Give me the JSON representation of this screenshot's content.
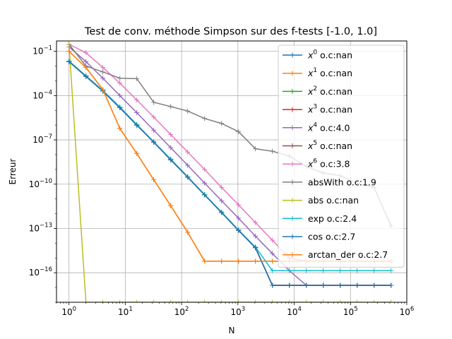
{
  "chart_data": {
    "type": "line",
    "title": "Test de conv. méthode Simpson sur des f-tests [-1.0, 1.0]",
    "xlabel": "N",
    "ylabel": "Erreur",
    "xscale": "log",
    "yscale": "log",
    "xlim": [
      0.6,
      1000000
    ],
    "ylim": [
      1e-18,
      0.5
    ],
    "x_ticks": [
      {
        "value": 1,
        "mantissa": "10",
        "exp": "0"
      },
      {
        "value": 10,
        "mantissa": "10",
        "exp": "1"
      },
      {
        "value": 100,
        "mantissa": "10",
        "exp": "2"
      },
      {
        "value": 1000,
        "mantissa": "10",
        "exp": "3"
      },
      {
        "value": 10000,
        "mantissa": "10",
        "exp": "4"
      },
      {
        "value": 100000,
        "mantissa": "10",
        "exp": "5"
      },
      {
        "value": 1000000,
        "mantissa": "10",
        "exp": "6"
      }
    ],
    "y_ticks": [
      {
        "value": 1e-16,
        "mantissa": "10",
        "exp": "−16"
      },
      {
        "value": 1e-13,
        "mantissa": "10",
        "exp": "−13"
      },
      {
        "value": 1e-10,
        "mantissa": "10",
        "exp": "−10"
      },
      {
        "value": 1e-07,
        "mantissa": "10",
        "exp": "−7"
      },
      {
        "value": 0.0001,
        "mantissa": "10",
        "exp": "−4"
      },
      {
        "value": 0.1,
        "mantissa": "10",
        "exp": "−1"
      }
    ],
    "grid": true,
    "legend_position": "top-right",
    "x": [
      1,
      2,
      4,
      8,
      16,
      32,
      64,
      128,
      256,
      512,
      1024,
      2048,
      4096,
      8192,
      16384,
      32768,
      65536,
      131072,
      262144,
      524288
    ],
    "series": [
      {
        "name": "x^0 o.c:nan",
        "color": "#1f77b4",
        "values": [
          0.02,
          0.002,
          0.0002,
          1.5e-05,
          1e-06,
          7e-08,
          4.5e-09,
          3e-10,
          1.9e-11,
          1.2e-12,
          7.5e-14,
          5e-15,
          1.4e-17,
          1.4e-17,
          1.4e-17,
          1.4e-17,
          1.4e-17,
          1.4e-17,
          1.4e-17,
          1.4e-17
        ]
      },
      {
        "name": "x^1 o.c:nan",
        "color": "#ff7f0e",
        "values": [
          0.1,
          0.008,
          0.00025,
          6e-07,
          1.2e-08,
          2e-10,
          3.5e-12,
          5.5e-14,
          6e-16,
          6e-16,
          6e-16,
          6e-16,
          6e-16,
          6e-16,
          6e-16,
          6e-16,
          6e-16,
          6e-16,
          6e-16,
          6e-16
        ]
      },
      {
        "name": "x^2 o.c:nan",
        "color": "#2ca02c",
        "values": [
          0.02,
          0.002,
          0.0002,
          1.5e-05,
          1e-06,
          7e-08,
          4.5e-09,
          3e-10,
          1.9e-11,
          1.2e-12,
          7.5e-14,
          5e-15,
          1.4e-17,
          1.4e-17,
          1.4e-17,
          1.4e-17,
          1.4e-17,
          1.4e-17,
          1.4e-17,
          1.4e-17
        ]
      },
      {
        "name": "x^3 o.c:nan",
        "color": "#d62728",
        "values": [
          0.02,
          0.002,
          0.0002,
          1.5e-05,
          1e-06,
          7e-08,
          4.5e-09,
          3e-10,
          1.9e-11,
          1.2e-12,
          7.5e-14,
          5e-15,
          1.4e-17,
          1.4e-17,
          1.4e-17,
          1.4e-17,
          1.4e-17,
          1.4e-17,
          1.4e-17,
          1.4e-17
        ]
      },
      {
        "name": "x^4 o.c:4.0",
        "color": "#9467bd",
        "values": [
          0.2,
          0.02,
          0.0015,
          0.0001,
          7e-06,
          4.5e-07,
          3e-08,
          1.9e-09,
          1.2e-10,
          7.5e-12,
          5e-13,
          3e-14,
          2e-15,
          1.4e-16,
          1.4e-17,
          1.4e-17,
          1.4e-17,
          1.4e-17,
          1.4e-17,
          1.4e-17
        ]
      },
      {
        "name": "x^5 o.c:nan",
        "color": "#8c564b",
        "values": [
          0.02,
          0.002,
          0.0002,
          1.5e-05,
          1e-06,
          7e-08,
          4.5e-09,
          3e-10,
          1.9e-11,
          1.2e-12,
          7.5e-14,
          5e-15,
          1.4e-17,
          1.4e-17,
          1.4e-17,
          1.4e-17,
          1.4e-17,
          1.4e-17,
          1.4e-17,
          1.4e-17
        ]
      },
      {
        "name": "x^6 o.c:3.8",
        "color": "#e377c2",
        "values": [
          0.3,
          0.08,
          0.008,
          0.0007,
          5e-05,
          3.5e-06,
          2.3e-07,
          1.5e-08,
          1e-09,
          6e-11,
          4e-12,
          2.5e-13,
          1.6e-14,
          1e-15,
          6e-16,
          6e-16,
          6e-16,
          6e-16,
          6e-16,
          6e-16
        ]
      },
      {
        "name": "absWith o.c:1.9",
        "color": "#7f7f7f",
        "values": [
          0.3,
          0.01,
          0.004,
          0.0015,
          0.0014,
          3.5e-05,
          1.8e-05,
          9e-06,
          2.8e-06,
          1.3e-06,
          3.6e-07,
          2.5e-08,
          1.7e-08,
          8e-09,
          1.6e-09,
          5.8e-10,
          3.7e-10,
          1.2e-10,
          6e-11,
          1.5e-13
        ]
      },
      {
        "name": "abs o.c:nan",
        "color": "#bcbd22",
        "values": [
          0.3,
          1e-18,
          1e-18,
          1e-18,
          1e-18,
          1e-18,
          1e-18,
          1e-18,
          1e-18,
          1e-18,
          1e-18,
          1e-18,
          1e-18,
          1e-18,
          1e-18,
          1e-18,
          1e-18,
          1e-18,
          1e-18,
          1e-18
        ]
      },
      {
        "name": "exp o.c:2.4",
        "color": "#17becf",
        "values": [
          0.022,
          0.0022,
          0.00022,
          1.7e-05,
          1.1e-06,
          7.5e-08,
          5e-09,
          3.2e-10,
          2e-11,
          1.3e-12,
          8e-14,
          5.5e-15,
          1.4e-16,
          1.4e-16,
          1.4e-16,
          1.4e-16,
          1.4e-16,
          1.4e-16,
          1.4e-16,
          1.4e-16
        ]
      },
      {
        "name": "cos o.c:2.7",
        "color": "#1f77b4",
        "values": [
          0.02,
          0.002,
          0.0002,
          1.5e-05,
          1e-06,
          7e-08,
          4.5e-09,
          3e-10,
          1.9e-11,
          1.2e-12,
          7.5e-14,
          5e-15,
          1.4e-17,
          1.4e-17,
          1.4e-17,
          1.4e-17,
          1.4e-17,
          1.4e-17,
          1.4e-17,
          1.4e-17
        ]
      },
      {
        "name": "arctan_der o.c:2.7",
        "color": "#ff7f0e",
        "values": [
          0.1,
          0.008,
          0.00025,
          6e-07,
          1.2e-08,
          2e-10,
          3.5e-12,
          5.5e-14,
          6e-16,
          6e-16,
          6e-16,
          6e-16,
          6e-16,
          6e-16,
          6e-16,
          6e-16,
          6e-16,
          6e-16,
          6e-16,
          6e-16
        ]
      }
    ],
    "legend": [
      {
        "base": "x",
        "sup": "0",
        "suffix": " o.c:nan",
        "color": "#1f77b4"
      },
      {
        "base": "x",
        "sup": "1",
        "suffix": " o.c:nan",
        "color": "#ff7f0e"
      },
      {
        "base": "x",
        "sup": "2",
        "suffix": " o.c:nan",
        "color": "#2ca02c"
      },
      {
        "base": "x",
        "sup": "3",
        "suffix": " o.c:nan",
        "color": "#d62728"
      },
      {
        "base": "x",
        "sup": "4",
        "suffix": " o.c:4.0",
        "color": "#9467bd"
      },
      {
        "base": "x",
        "sup": "5",
        "suffix": " o.c:nan",
        "color": "#8c564b"
      },
      {
        "base": "x",
        "sup": "6",
        "suffix": " o.c:3.8",
        "color": "#e377c2"
      },
      {
        "base": "absWith",
        "sup": "",
        "suffix": " o.c:1.9",
        "color": "#7f7f7f"
      },
      {
        "base": "abs",
        "sup": "",
        "suffix": " o.c:nan",
        "color": "#bcbd22"
      },
      {
        "base": "exp",
        "sup": "",
        "suffix": " o.c:2.4",
        "color": "#17becf"
      },
      {
        "base": "cos",
        "sup": "",
        "suffix": " o.c:2.7",
        "color": "#1f77b4"
      },
      {
        "base": "arctan_der",
        "sup": "",
        "suffix": " o.c:2.7",
        "color": "#ff7f0e"
      }
    ]
  }
}
